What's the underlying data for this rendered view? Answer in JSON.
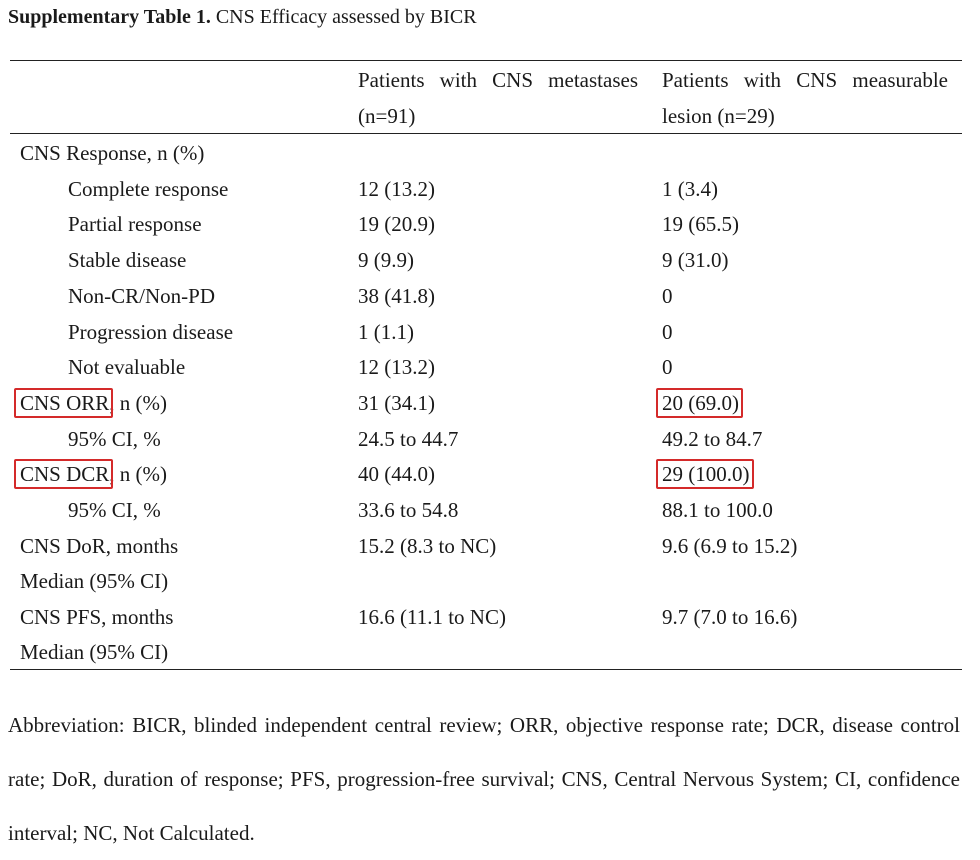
{
  "title": {
    "bold": "Supplementary Table 1.",
    "text": " CNS Efficacy assessed by BICR"
  },
  "columns": {
    "col1": "Patients with CNS metastases (n=91)",
    "col2": "Patients with CNS measurable lesion (n=29)"
  },
  "rows": [
    {
      "label": "CNS Response, n (%)",
      "v1": "",
      "v2": ""
    },
    {
      "label": "Complete response",
      "v1": "12 (13.2)",
      "v2": "1 (3.4)"
    },
    {
      "label": "Partial response",
      "v1": "19 (20.9)",
      "v2": "19 (65.5)"
    },
    {
      "label": "Stable disease",
      "v1": "9 (9.9)",
      "v2": "9 (31.0)"
    },
    {
      "label": "Non-CR/Non-PD",
      "v1": "38 (41.8)",
      "v2": "0"
    },
    {
      "label": "Progression disease",
      "v1": "1 (1.1)",
      "v2": "0"
    },
    {
      "label": "Not evaluable",
      "v1": "12 (13.2)",
      "v2": "0"
    },
    {
      "label_box": "CNS ORR",
      "label_rest": ", n (%)",
      "v1": "31 (34.1)",
      "v2": "20 (69.0)"
    },
    {
      "label": "95% CI, %",
      "v1": "24.5 to 44.7",
      "v2": "49.2 to 84.7"
    },
    {
      "label_box": "CNS DCR",
      "label_rest": ", n (%)",
      "v1": "40 (44.0)",
      "v2": "29 (100.0)"
    },
    {
      "label": "95% CI, %",
      "v1": "33.6 to 54.8",
      "v2": "88.1 to 100.0"
    },
    {
      "label": "CNS DoR, months",
      "v1": "15.2 (8.3 to NC)",
      "v2": "9.6 (6.9 to 15.2)"
    },
    {
      "label": "Median (95% CI)",
      "v1": "",
      "v2": ""
    },
    {
      "label": "CNS PFS, months",
      "v1": "16.6 (11.1 to NC)",
      "v2": "9.7 (7.0 to 16.6)"
    },
    {
      "label": "Median (95% CI)",
      "v1": "",
      "v2": ""
    }
  ],
  "footnote": "Abbreviation: BICR, blinded independent central review; ORR, objective response rate; DCR, disease control rate; DoR, duration of response; PFS, progression-free survival; CNS, Central Nervous System; CI, confidence interval; NC, Not Calculated.",
  "highlight_color": "#d42a2a"
}
